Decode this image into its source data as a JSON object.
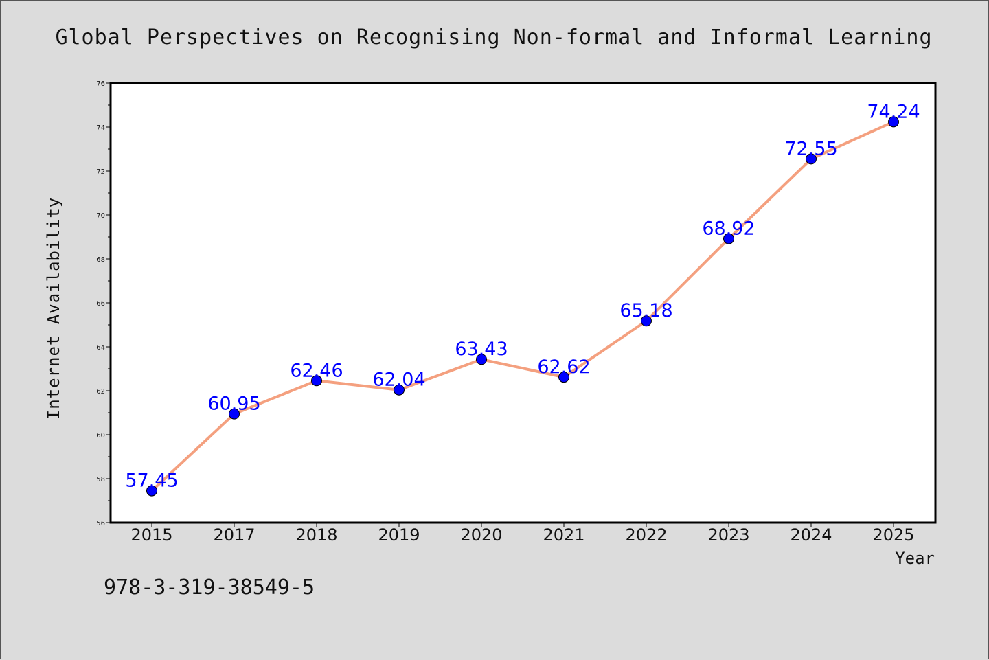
{
  "chart_data": {
    "type": "line",
    "title": "Global Perspectives on Recognising Non-formal and Informal Learning",
    "xlabel": "Year",
    "ylabel": "Internet Availability",
    "categories": [
      "2015",
      "2017",
      "2018",
      "2019",
      "2020",
      "2021",
      "2022",
      "2023",
      "2024",
      "2025"
    ],
    "series": [
      {
        "values": [
          57.45,
          60.95,
          62.46,
          62.04,
          63.43,
          62.62,
          65.18,
          68.92,
          72.55,
          74.24
        ],
        "data_labels": [
          "57.45",
          "60.95",
          "62.46",
          "62.04",
          "63.43",
          "62.62",
          "65.18",
          "68.92",
          "72.55",
          "74.24"
        ],
        "line_color": "#f4a07f",
        "marker_color": "#0000ff"
      }
    ],
    "ylim": [
      56,
      76
    ],
    "yticks": [
      "56",
      "58",
      "60",
      "62",
      "64",
      "66",
      "68",
      "70",
      "72",
      "74",
      "76"
    ],
    "grid": false,
    "legend": "none"
  },
  "footer": {
    "isbn": "978-3-319-38549-5"
  }
}
